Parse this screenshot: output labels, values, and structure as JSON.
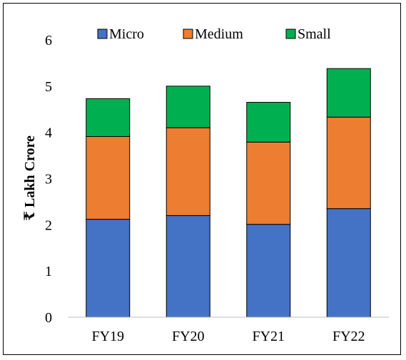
{
  "chart_data": {
    "type": "bar",
    "stacked": true,
    "categories": [
      "FY19",
      "FY20",
      "FY21",
      "FY22"
    ],
    "series": [
      {
        "name": "Micro",
        "values": [
          2.12,
          2.2,
          2.01,
          2.35
        ],
        "color": "#4472C4"
      },
      {
        "name": "Medium",
        "values": [
          1.79,
          1.9,
          1.78,
          1.98
        ],
        "color": "#ED7D31"
      },
      {
        "name": "Small",
        "values": [
          0.82,
          0.9,
          0.86,
          1.05
        ],
        "color": "#00B050"
      }
    ],
    "xlabel": "",
    "ylabel": "₹ Lakh Crore",
    "ylim": [
      0,
      6
    ],
    "yticks": [
      "0",
      "1",
      "2",
      "3",
      "4",
      "5",
      "6"
    ],
    "grid": false,
    "legend_position": "top"
  }
}
